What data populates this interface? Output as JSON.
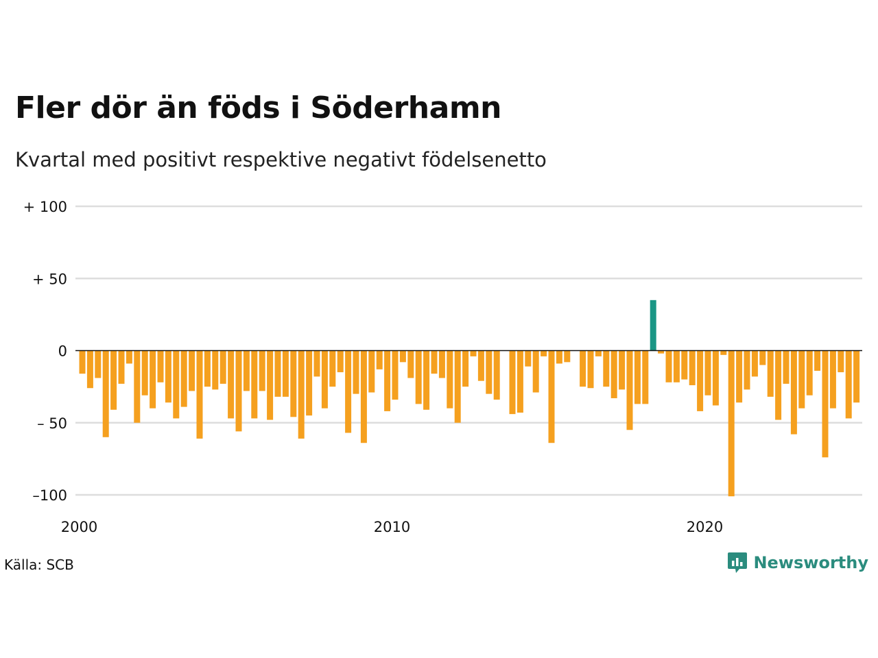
{
  "header": {
    "title": "Fler dör än föds i Söderhamn",
    "subtitle": "Kvartal med positivt respektive negativt födelsenetto"
  },
  "footer": {
    "source": "Källa: SCB",
    "brand": "Newsworthy"
  },
  "colors": {
    "negative": "#F5A01F",
    "positive": "#1A9685",
    "grid": "#DDDDDD",
    "brand": "#2B8C7E"
  },
  "chart_data": {
    "type": "bar",
    "title": "Fler dör än föds i Söderhamn",
    "subtitle": "Kvartal med positivt respektive negativt födelsenetto",
    "xlabel": "",
    "ylabel": "",
    "x_start": "2000 Q1",
    "x_ticks": [
      {
        "value": 2000,
        "label": "2000"
      },
      {
        "value": 2010,
        "label": "2010"
      },
      {
        "value": 2020,
        "label": "2020"
      }
    ],
    "y_ticks": [
      {
        "value": 100,
        "label": "+ 100"
      },
      {
        "value": 50,
        "label": "+  50"
      },
      {
        "value": 0,
        "label": "0"
      },
      {
        "value": -50,
        "label": "– 50"
      },
      {
        "value": -100,
        "label": "–100"
      }
    ],
    "ylim": [
      -100,
      100
    ],
    "grid": true,
    "values": [
      -16,
      -26,
      -19,
      -60,
      -41,
      -23,
      -9,
      -50,
      -31,
      -40,
      -22,
      -36,
      -47,
      -39,
      -28,
      -61,
      -25,
      -27,
      -23,
      -47,
      -56,
      -28,
      -47,
      -28,
      -48,
      -32,
      -32,
      -46,
      -61,
      -45,
      -18,
      -40,
      -25,
      -15,
      -57,
      -30,
      -64,
      -29,
      -13,
      -42,
      -34,
      -8,
      -19,
      -37,
      -41,
      -16,
      -19,
      -40,
      -50,
      -25,
      -4,
      -21,
      -30,
      -34,
      0,
      -44,
      -43,
      -11,
      -29,
      -4,
      -64,
      -9,
      -8,
      0,
      -25,
      -26,
      -4,
      -25,
      -33,
      -27,
      -55,
      -37,
      -37,
      35,
      -2,
      -22,
      -22,
      -20,
      -24,
      -42,
      -31,
      -38,
      -3,
      -101,
      -36,
      -27,
      -18,
      -10,
      -32,
      -48,
      -23,
      -58,
      -40,
      -31,
      -14,
      -74,
      -40,
      -15,
      -47,
      -36
    ]
  }
}
